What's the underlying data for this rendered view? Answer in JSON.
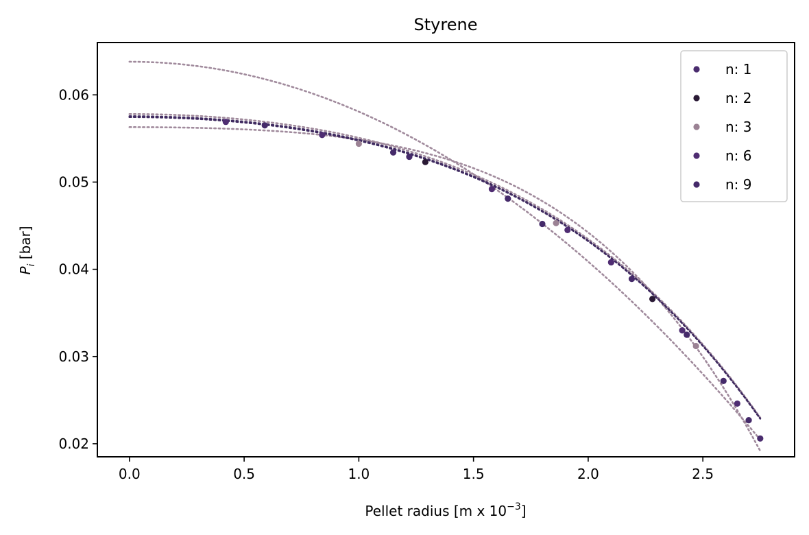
{
  "chart_data": {
    "type": "scatter",
    "title": "Styrene",
    "xlabel_main": "Pellet radius [m x 10",
    "xlabel_exp": "−3",
    "xlabel_end": "]",
    "ylabel_sym": "P",
    "ylabel_sub": "i",
    "ylabel_unit": " [bar]",
    "xlim": [
      -0.14,
      2.9
    ],
    "ylim": [
      0.0185,
      0.066
    ],
    "x_ticks": [
      0.0,
      0.5,
      1.0,
      1.5,
      2.0,
      2.5
    ],
    "x_tick_labels": [
      "0.0",
      "0.5",
      "1.0",
      "1.5",
      "2.0",
      "2.5"
    ],
    "y_ticks": [
      0.02,
      0.03,
      0.04,
      0.05,
      0.06
    ],
    "y_tick_labels": [
      "0.02",
      "0.03",
      "0.04",
      "0.05",
      "0.06"
    ],
    "legend_position": "top-right",
    "colors": {
      "n1": "#4a2c6e",
      "n2": "#2a1a35",
      "n3": "#9b8294",
      "n6": "#4f2d72",
      "n9": "#452a6a",
      "fit_dark": "#3f2a60",
      "fit_light": "#a08a9c"
    },
    "series": [
      {
        "name": "n: 1",
        "color": "#4a2c6e",
        "points": [
          [
            2.75,
            0.0206
          ]
        ]
      },
      {
        "name": "n: 2",
        "color": "#2a1a35",
        "points": [
          [
            1.29,
            0.0523
          ],
          [
            2.28,
            0.0366
          ]
        ]
      },
      {
        "name": "n: 3",
        "color": "#9b8294",
        "points": [
          [
            1.0,
            0.0544
          ],
          [
            1.86,
            0.0453
          ],
          [
            2.47,
            0.0312
          ]
        ]
      },
      {
        "name": "n: 6",
        "color": "#4f2d72",
        "points": [
          [
            0.42,
            0.0569
          ],
          [
            0.84,
            0.0554
          ],
          [
            1.58,
            0.0492
          ],
          [
            1.91,
            0.0445
          ],
          [
            2.1,
            0.0408
          ],
          [
            2.41,
            0.033
          ],
          [
            2.65,
            0.0246
          ]
        ]
      },
      {
        "name": "n: 9",
        "color": "#452a6a",
        "points": [
          [
            0.59,
            0.0565
          ],
          [
            1.15,
            0.0534
          ],
          [
            1.22,
            0.0529
          ],
          [
            1.65,
            0.0481
          ],
          [
            1.8,
            0.0452
          ],
          [
            2.19,
            0.0389
          ],
          [
            2.43,
            0.0325
          ],
          [
            2.59,
            0.0272
          ],
          [
            2.7,
            0.0227
          ]
        ]
      }
    ],
    "fit_curves": [
      {
        "name": "fit n: 1",
        "color": "#a08a9c",
        "p0": 0.0638,
        "a": 0.00573,
        "b": 0.0
      },
      {
        "name": "fit n: 2",
        "color": "#a08a9c",
        "p0": 0.0563,
        "a": 0.0009,
        "b": 0.00053
      },
      {
        "name": "fit n: 3",
        "color": "#a08a9c",
        "p0": 0.0578,
        "a": 0.00244,
        "b": 0.000286
      },
      {
        "name": "fit n: 6",
        "color": "#3f2a60",
        "p0": 0.05755,
        "a": 0.00243,
        "b": 0.000285
      },
      {
        "name": "fit n: 9",
        "color": "#3f2a60",
        "p0": 0.05745,
        "a": 0.00242,
        "b": 0.000284
      }
    ]
  }
}
